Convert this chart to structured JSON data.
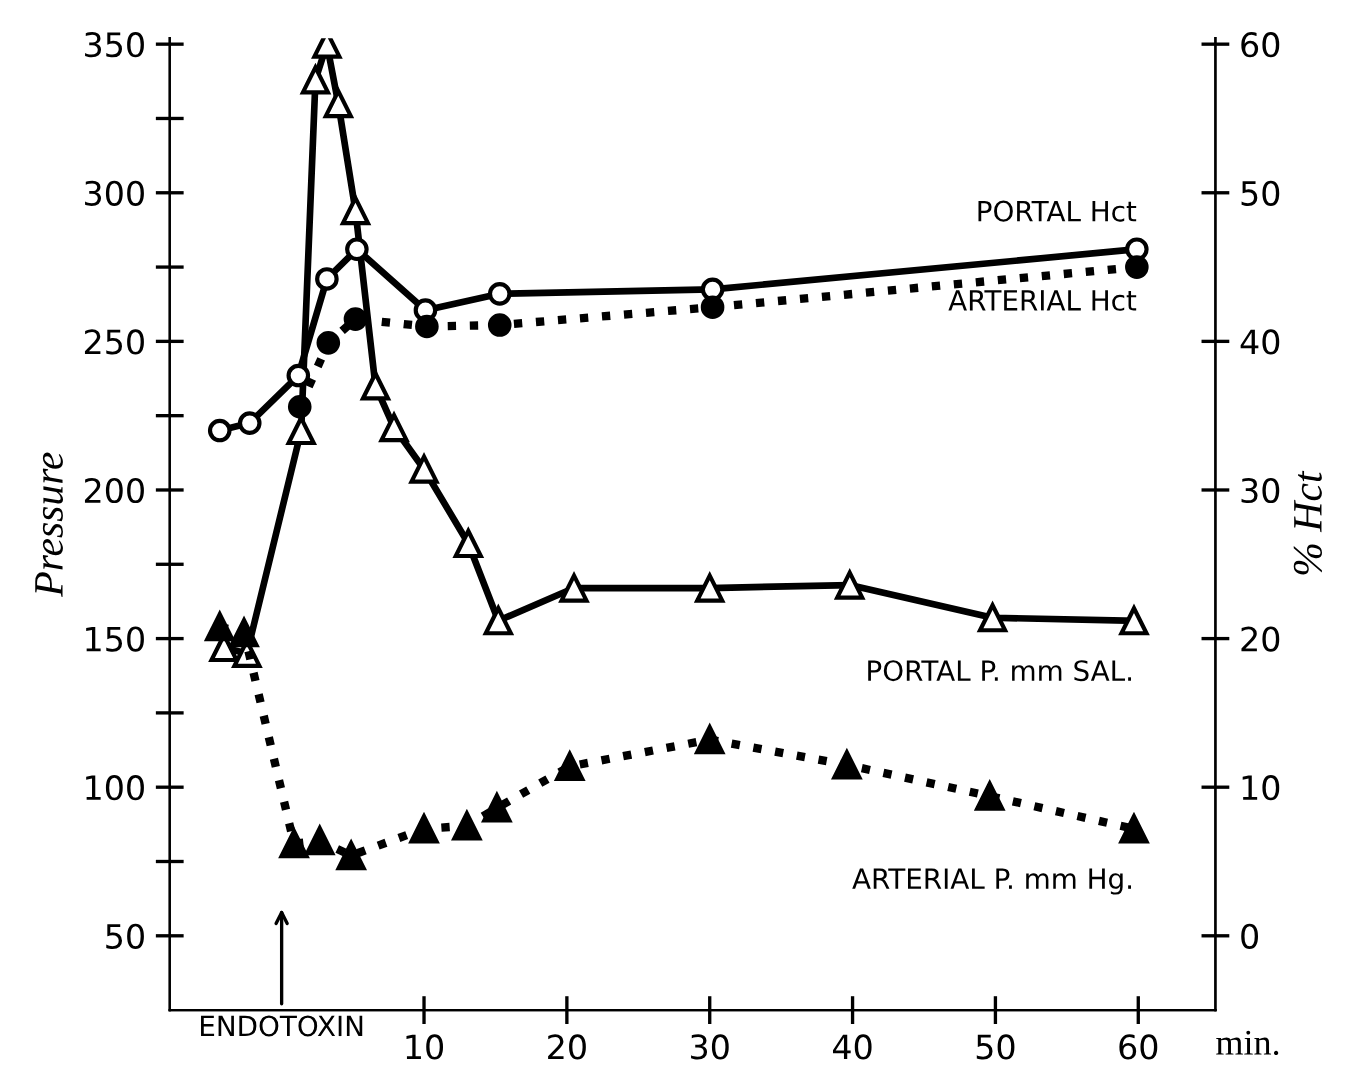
{
  "chart_data": {
    "type": "line",
    "xlabel": "min.",
    "ylabel": "Pressure",
    "y2label": "% Hct",
    "xlim": [
      -7.8,
      65.4
    ],
    "xticks": [
      10,
      20,
      30,
      40,
      50,
      60
    ],
    "ylim": [
      25,
      352
    ],
    "yticks": [
      50,
      {
        "value": 75,
        "label": null
      },
      100,
      {
        "value": 125,
        "label": null
      },
      150,
      {
        "value": 175,
        "label": null
      },
      200,
      {
        "value": 225,
        "label": null
      },
      250,
      {
        "value": 275,
        "label": null
      },
      300,
      {
        "value": 325,
        "label": null
      },
      350
    ],
    "y2lim": [
      -5,
      60.4
    ],
    "y2ticks": [
      0,
      10,
      20,
      30,
      40,
      50,
      60
    ],
    "grid": false,
    "legend": false,
    "annotations": [
      "ENDOTOXIN"
    ],
    "series": [
      {
        "name": "PORTAL Hct",
        "color": "#000000",
        "axis": "y2",
        "marker": "circle",
        "line_style": "solid",
        "x": [
          -4.3,
          -2.2,
          1.2,
          3.2,
          5.3,
          10.1,
          15.3,
          30.2,
          59.9
        ],
        "values": [
          34.0,
          34.5,
          37.7,
          44.2,
          46.2,
          42.1,
          43.2,
          43.5,
          46.2
        ]
      },
      {
        "name": "ARTERIAL Hct",
        "color": "#000000",
        "axis": "y2",
        "marker": "circle",
        "line_style": "dotted",
        "x": [
          1.3,
          3.3,
          5.2,
          10.2,
          15.3,
          30.2,
          59.9
        ],
        "values": [
          35.6,
          39.9,
          41.5,
          41.0,
          41.1,
          42.3,
          45.0
        ]
      },
      {
        "name": "PORTAL P. mm SAL.",
        "color": "#000000",
        "marker": "triangle",
        "line_style": "solid",
        "x": [
          -4.0,
          -2.4,
          1.4,
          2.4,
          3.2,
          4.0,
          5.2,
          6.6,
          7.9,
          10.0,
          13.1,
          15.2,
          20.5,
          30.0,
          39.8,
          49.8,
          59.7
        ],
        "values": [
          147,
          145,
          220,
          338,
          350,
          330,
          294,
          235,
          221,
          207,
          182,
          156,
          167,
          167,
          168,
          157,
          156
        ]
      },
      {
        "name": "ARTERIAL P. mm Hg.",
        "color": "#000000",
        "marker": "triangle",
        "line_style": "dotted",
        "x": [
          -4.3,
          -2.6,
          0.9,
          2.7,
          4.9,
          10.0,
          13.0,
          15.1,
          20.2,
          30.0,
          39.6,
          49.6,
          59.7
        ],
        "values": [
          154,
          152,
          81,
          82,
          77,
          86,
          87,
          93,
          107,
          116,
          107.5,
          97,
          86
        ]
      }
    ]
  }
}
